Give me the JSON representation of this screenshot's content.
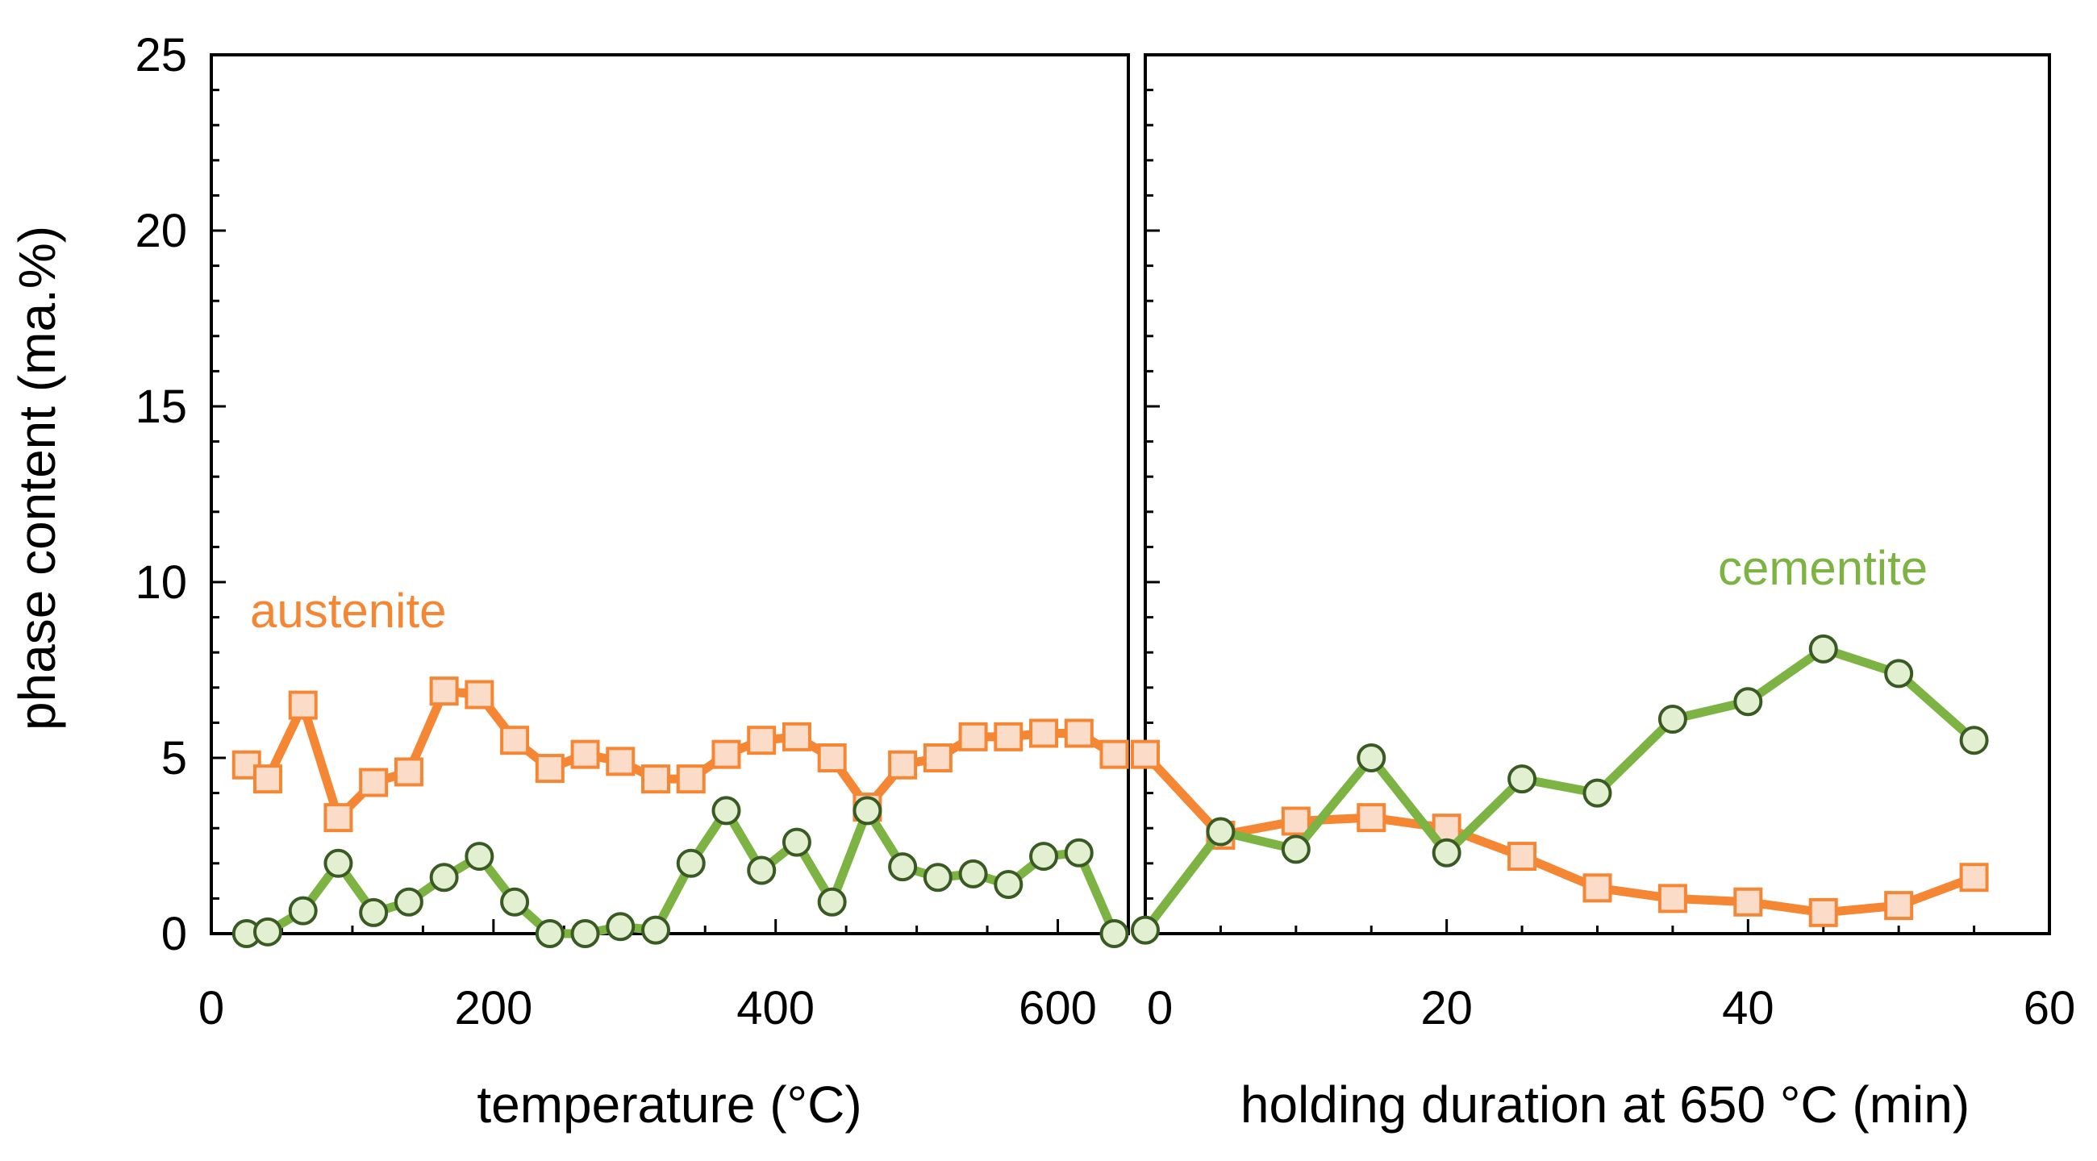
{
  "chart_data": {
    "type": "line",
    "ylabel": "phase content (ma.%)",
    "ylim": [
      0,
      25
    ],
    "yticks": [
      "0",
      "5",
      "10",
      "15",
      "20",
      "25"
    ],
    "colors": {
      "austenite_line": "#F58634",
      "austenite_fill": "#FBDCC8",
      "cementite_line": "#7CB342",
      "cementite_fill": "#E2EFD0",
      "cementite_edge": "#3A5A24"
    },
    "panels": [
      {
        "xlabel": "temperature (°C)",
        "xlim": [
          0,
          650
        ],
        "xticks": [
          "0",
          "200",
          "400",
          "600"
        ],
        "xtick_values": [
          0,
          200,
          400,
          600
        ],
        "series": [
          {
            "name": "austenite",
            "x": [
              25,
              40,
              65,
              90,
              115,
              140,
              165,
              190,
              215,
              240,
              265,
              290,
              315,
              340,
              365,
              390,
              415,
              440,
              465,
              490,
              515,
              540,
              565,
              590,
              615,
              640
            ],
            "values": [
              4.8,
              4.4,
              6.5,
              3.3,
              4.3,
              4.6,
              6.9,
              6.8,
              5.5,
              4.7,
              5.1,
              4.9,
              4.4,
              4.4,
              5.1,
              5.5,
              5.6,
              5.0,
              3.6,
              4.8,
              5.0,
              5.6,
              5.6,
              5.7,
              5.7,
              5.1
            ]
          },
          {
            "name": "cementite",
            "x": [
              25,
              40,
              65,
              90,
              115,
              140,
              165,
              190,
              215,
              240,
              265,
              290,
              315,
              340,
              365,
              390,
              415,
              440,
              465,
              490,
              515,
              540,
              565,
              590,
              615,
              640
            ],
            "values": [
              0.0,
              0.05,
              0.65,
              2.0,
              0.6,
              0.9,
              1.6,
              2.2,
              0.9,
              0.0,
              0.0,
              0.2,
              0.1,
              2.0,
              3.5,
              1.8,
              2.6,
              0.9,
              3.5,
              1.9,
              1.6,
              1.7,
              1.4,
              2.2,
              2.3,
              0.0
            ]
          }
        ]
      },
      {
        "xlabel": "holding duration at 650 °C (min)",
        "xlim": [
          0,
          60
        ],
        "xticks": [
          "0",
          "20",
          "40",
          "60"
        ],
        "xtick_values": [
          0,
          20,
          40,
          60
        ],
        "series": [
          {
            "name": "austenite",
            "x": [
              0,
              5,
              10,
              15,
              20,
              25,
              30,
              35,
              40,
              45,
              50,
              55
            ],
            "values": [
              5.1,
              2.8,
              3.2,
              3.3,
              3.0,
              2.2,
              1.3,
              1.0,
              0.9,
              0.6,
              0.8,
              1.6
            ]
          },
          {
            "name": "cementite",
            "x": [
              0,
              5,
              10,
              15,
              20,
              25,
              30,
              35,
              40,
              45,
              50,
              55
            ],
            "values": [
              0.1,
              2.9,
              2.4,
              5.0,
              2.3,
              4.4,
              4.0,
              6.1,
              6.6,
              8.1,
              7.4,
              5.5
            ]
          }
        ]
      }
    ],
    "annotations": [
      {
        "text": "austenite",
        "series": "austenite"
      },
      {
        "text": "cementite",
        "series": "cementite"
      }
    ]
  }
}
